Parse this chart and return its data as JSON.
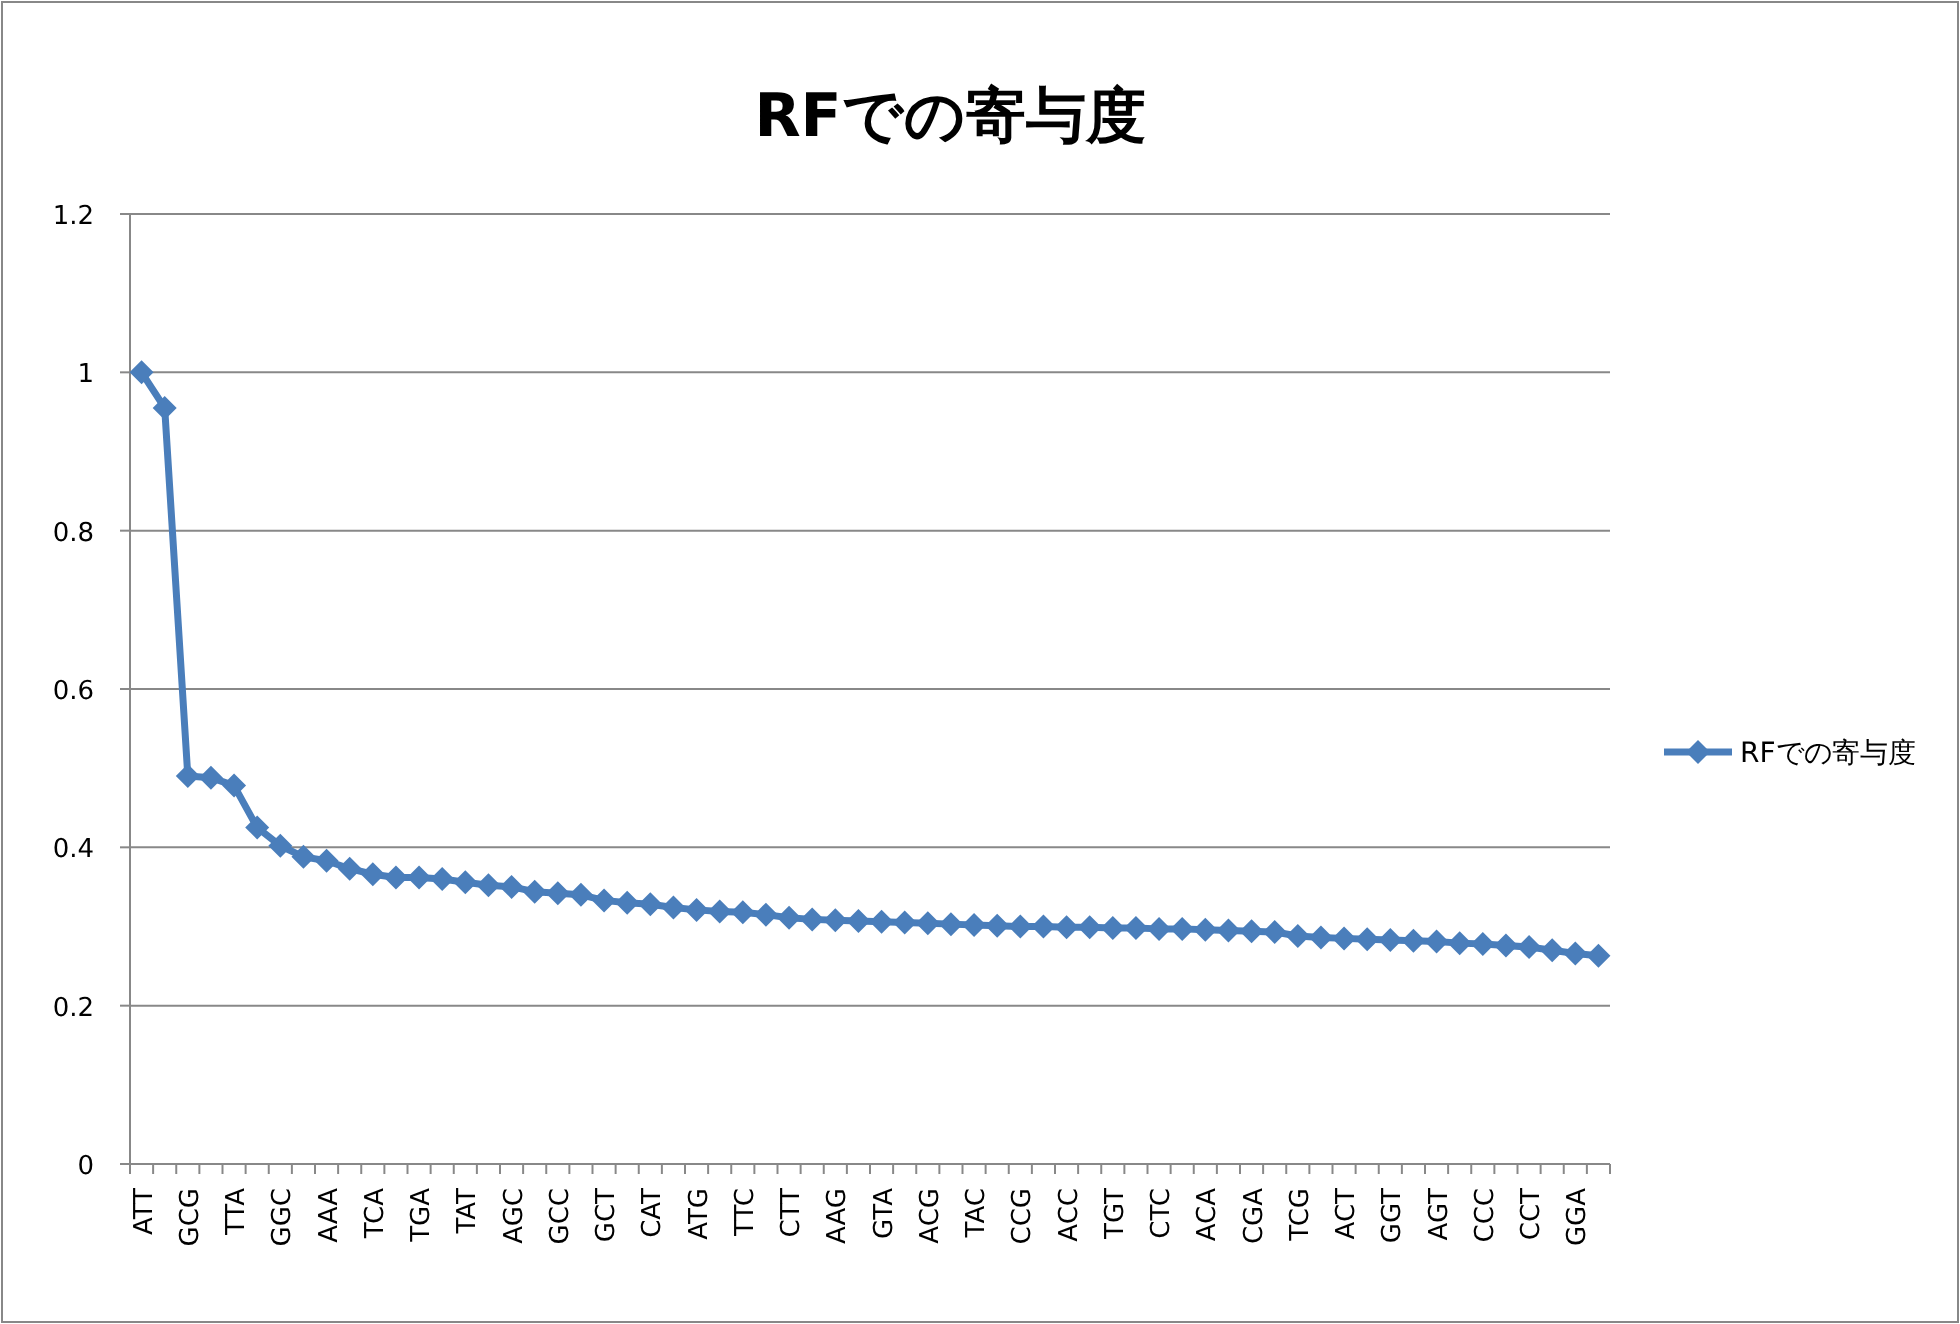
{
  "chart_data": {
    "type": "line",
    "title": "RFでの寄与度",
    "categories": [
      "ATT",
      null,
      "GCG",
      null,
      "TTA",
      null,
      "GGC",
      null,
      "AAA",
      null,
      "TCA",
      null,
      "TGA",
      null,
      "TAT",
      null,
      "AGC",
      null,
      "GCC",
      null,
      "GCT",
      null,
      "CAT",
      null,
      "ATG",
      null,
      "TTC",
      null,
      "CTT",
      null,
      "AAG",
      null,
      "GTA",
      null,
      "ACG",
      null,
      "TAC",
      null,
      "CCG",
      null,
      "ACC",
      null,
      "TGT",
      null,
      "CTC",
      null,
      "ACA",
      null,
      "CGA",
      null,
      "TCG",
      null,
      "ACT",
      null,
      "GGT",
      null,
      "AGT",
      null,
      "CCC",
      null,
      "CCT",
      null,
      "GGA",
      null
    ],
    "series": [
      {
        "name": "RFでの寄与度",
        "color": "#4a7ebb",
        "values": [
          1.0,
          0.955,
          0.49,
          0.488,
          0.478,
          0.425,
          0.402,
          0.388,
          0.383,
          0.373,
          0.366,
          0.362,
          0.362,
          0.36,
          0.356,
          0.352,
          0.35,
          0.344,
          0.342,
          0.34,
          0.333,
          0.33,
          0.328,
          0.324,
          0.321,
          0.319,
          0.318,
          0.315,
          0.311,
          0.309,
          0.308,
          0.307,
          0.306,
          0.305,
          0.304,
          0.303,
          0.302,
          0.301,
          0.3,
          0.3,
          0.299,
          0.299,
          0.298,
          0.298,
          0.297,
          0.297,
          0.296,
          0.295,
          0.294,
          0.293,
          0.288,
          0.286,
          0.285,
          0.284,
          0.283,
          0.282,
          0.281,
          0.279,
          0.278,
          0.276,
          0.274,
          0.27,
          0.266,
          0.263
        ]
      }
    ],
    "ylim": [
      0,
      1.2
    ],
    "yticks": [
      0,
      0.2,
      0.4,
      0.6,
      0.8,
      1,
      1.2
    ],
    "grid": "y",
    "legend": "right",
    "marker": "diamond",
    "line_style": "solid"
  }
}
